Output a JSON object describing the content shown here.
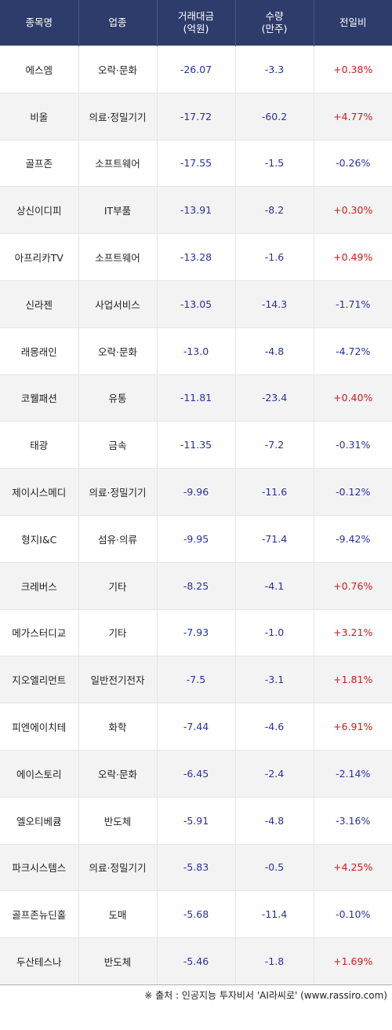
{
  "header": {
    "col1": "종목명",
    "col2": "업종",
    "col3_line1": "거래대금",
    "col3_line2": "(억원)",
    "col4_line1": "수량",
    "col4_line2": "(만주)",
    "col5": "전일비"
  },
  "colors": {
    "header_bg": "#2d3c6a",
    "up": "#d11a1a",
    "down": "#2a2fa3"
  },
  "rows": [
    {
      "name": "에스엠",
      "sector": "오락·문화",
      "amount": "-26.07",
      "volume": "-3.3",
      "change": "+0.38%"
    },
    {
      "name": "비올",
      "sector": "의료·정밀기기",
      "amount": "-17.72",
      "volume": "-60.2",
      "change": "+4.77%"
    },
    {
      "name": "골프존",
      "sector": "소프트웨어",
      "amount": "-17.55",
      "volume": "-1.5",
      "change": "-0.26%"
    },
    {
      "name": "상신이디피",
      "sector": "IT부품",
      "amount": "-13.91",
      "volume": "-8.2",
      "change": "+0.30%"
    },
    {
      "name": "아프리카TV",
      "sector": "소프트웨어",
      "amount": "-13.28",
      "volume": "-1.6",
      "change": "+0.49%"
    },
    {
      "name": "신라젠",
      "sector": "사업서비스",
      "amount": "-13.05",
      "volume": "-14.3",
      "change": "-1.71%"
    },
    {
      "name": "래몽래인",
      "sector": "오락·문화",
      "amount": "-13.0",
      "volume": "-4.8",
      "change": "-4.72%"
    },
    {
      "name": "코웰패션",
      "sector": "유통",
      "amount": "-11.81",
      "volume": "-23.4",
      "change": "+0.40%"
    },
    {
      "name": "태광",
      "sector": "금속",
      "amount": "-11.35",
      "volume": "-7.2",
      "change": "-0.31%"
    },
    {
      "name": "제이시스메디",
      "sector": "의료·정밀기기",
      "amount": "-9.96",
      "volume": "-11.6",
      "change": "-0.12%"
    },
    {
      "name": "형지I&C",
      "sector": "섬유·의류",
      "amount": "-9.95",
      "volume": "-71.4",
      "change": "-9.42%"
    },
    {
      "name": "크레버스",
      "sector": "기타",
      "amount": "-8.25",
      "volume": "-4.1",
      "change": "+0.76%"
    },
    {
      "name": "메가스터디교",
      "sector": "기타",
      "amount": "-7.93",
      "volume": "-1.0",
      "change": "+3.21%"
    },
    {
      "name": "지오엘리먼트",
      "sector": "일반전기전자",
      "amount": "-7.5",
      "volume": "-3.1",
      "change": "+1.81%"
    },
    {
      "name": "피엔에이치테",
      "sector": "화학",
      "amount": "-7.44",
      "volume": "-4.6",
      "change": "+6.91%"
    },
    {
      "name": "에이스토리",
      "sector": "오락·문화",
      "amount": "-6.45",
      "volume": "-2.4",
      "change": "-2.14%"
    },
    {
      "name": "엘오티베큠",
      "sector": "반도체",
      "amount": "-5.91",
      "volume": "-4.8",
      "change": "-3.16%"
    },
    {
      "name": "파크시스템스",
      "sector": "의료·정밀기기",
      "amount": "-5.83",
      "volume": "-0.5",
      "change": "+4.25%"
    },
    {
      "name": "골프존뉴딘홀",
      "sector": "도매",
      "amount": "-5.68",
      "volume": "-11.4",
      "change": "-0.10%"
    },
    {
      "name": "두산테스나",
      "sector": "반도체",
      "amount": "-5.46",
      "volume": "-1.8",
      "change": "+1.69%"
    }
  ],
  "footer": "※ 출처 : 인공지능 투자비서 'AI라씨로' (www.rassiro.com)"
}
